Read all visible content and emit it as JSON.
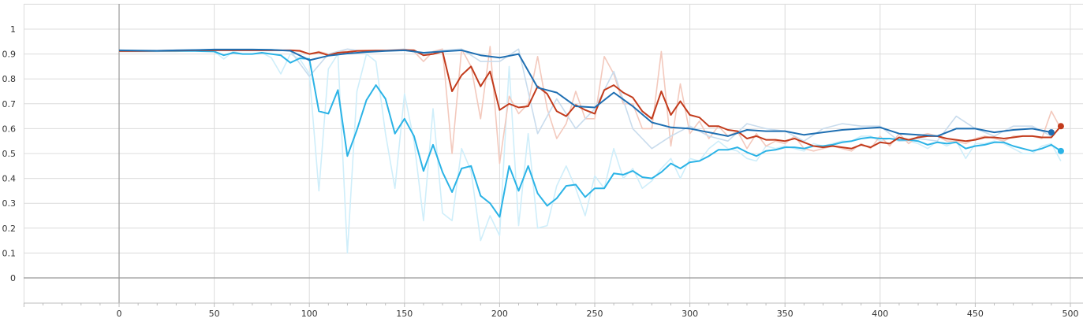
{
  "chart_data": {
    "type": "line",
    "xlim": [
      -50,
      500
    ],
    "ylim": [
      -0.1,
      1.1
    ],
    "x_ticks": [
      0,
      50,
      100,
      150,
      200,
      250,
      300,
      350,
      400,
      450,
      500
    ],
    "y_ticks": [
      0,
      0.1,
      0.2,
      0.3,
      0.4,
      0.5,
      0.6,
      0.7,
      0.8,
      0.9,
      1
    ],
    "grid": true,
    "series": [
      {
        "color": "#2bb3e6",
        "raw_color": "#cfeefa",
        "end_marker": true,
        "x": [
          0,
          10,
          20,
          30,
          40,
          50,
          55,
          60,
          65,
          70,
          75,
          80,
          85,
          90,
          95,
          100,
          105,
          110,
          115,
          120,
          125,
          130,
          135,
          140,
          145,
          150,
          155,
          160,
          165,
          170,
          175,
          180,
          185,
          190,
          195,
          200,
          205,
          210,
          215,
          220,
          225,
          230,
          235,
          240,
          245,
          250,
          255,
          260,
          265,
          270,
          275,
          280,
          285,
          290,
          295,
          300,
          305,
          310,
          315,
          320,
          325,
          330,
          335,
          340,
          345,
          350,
          355,
          360,
          365,
          370,
          375,
          380,
          385,
          390,
          395,
          400,
          405,
          410,
          415,
          420,
          425,
          430,
          435,
          440,
          445,
          450,
          455,
          460,
          465,
          470,
          475,
          480,
          485,
          490,
          495
        ],
        "smoothed": [
          0.912,
          0.912,
          0.912,
          0.912,
          0.912,
          0.91,
          0.895,
          0.905,
          0.9,
          0.9,
          0.905,
          0.9,
          0.895,
          0.865,
          0.883,
          0.88,
          0.67,
          0.66,
          0.755,
          0.49,
          0.595,
          0.715,
          0.775,
          0.72,
          0.58,
          0.64,
          0.57,
          0.43,
          0.535,
          0.425,
          0.345,
          0.44,
          0.45,
          0.33,
          0.3,
          0.245,
          0.45,
          0.35,
          0.45,
          0.34,
          0.29,
          0.32,
          0.37,
          0.375,
          0.325,
          0.36,
          0.36,
          0.42,
          0.415,
          0.43,
          0.405,
          0.4,
          0.425,
          0.46,
          0.44,
          0.465,
          0.47,
          0.49,
          0.515,
          0.515,
          0.525,
          0.505,
          0.49,
          0.51,
          0.515,
          0.525,
          0.525,
          0.52,
          0.53,
          0.53,
          0.535,
          0.545,
          0.55,
          0.56,
          0.565,
          0.56,
          0.56,
          0.555,
          0.555,
          0.55,
          0.535,
          0.545,
          0.54,
          0.545,
          0.52,
          0.53,
          0.535,
          0.545,
          0.545,
          0.53,
          0.52,
          0.51,
          0.52,
          0.535,
          0.51
        ],
        "raw": [
          0.91,
          0.91,
          0.91,
          0.91,
          0.915,
          0.91,
          0.88,
          0.91,
          0.9,
          0.9,
          0.905,
          0.885,
          0.82,
          0.9,
          0.88,
          0.82,
          0.35,
          0.84,
          0.9,
          0.1,
          0.75,
          0.9,
          0.87,
          0.58,
          0.36,
          0.74,
          0.55,
          0.23,
          0.68,
          0.26,
          0.23,
          0.52,
          0.43,
          0.15,
          0.25,
          0.17,
          0.85,
          0.21,
          0.58,
          0.2,
          0.21,
          0.37,
          0.45,
          0.36,
          0.25,
          0.41,
          0.36,
          0.52,
          0.4,
          0.44,
          0.36,
          0.39,
          0.44,
          0.48,
          0.4,
          0.48,
          0.47,
          0.52,
          0.55,
          0.52,
          0.51,
          0.48,
          0.47,
          0.53,
          0.52,
          0.53,
          0.52,
          0.51,
          0.54,
          0.53,
          0.54,
          0.55,
          0.55,
          0.57,
          0.57,
          0.55,
          0.56,
          0.55,
          0.55,
          0.54,
          0.52,
          0.55,
          0.53,
          0.55,
          0.48,
          0.54,
          0.54,
          0.55,
          0.54,
          0.52,
          0.5,
          0.5,
          0.53,
          0.54,
          0.47
        ]
      },
      {
        "color": "#c23b1c",
        "raw_color": "#f3c9bd",
        "end_marker": true,
        "x": [
          0,
          10,
          20,
          30,
          40,
          50,
          60,
          70,
          80,
          90,
          95,
          100,
          105,
          110,
          115,
          120,
          125,
          130,
          135,
          140,
          145,
          150,
          155,
          160,
          165,
          170,
          175,
          180,
          185,
          190,
          195,
          200,
          205,
          210,
          215,
          220,
          225,
          230,
          235,
          240,
          245,
          250,
          255,
          260,
          265,
          270,
          275,
          280,
          285,
          290,
          295,
          300,
          305,
          310,
          315,
          320,
          325,
          330,
          335,
          340,
          345,
          350,
          355,
          360,
          365,
          370,
          375,
          380,
          385,
          390,
          395,
          400,
          405,
          410,
          415,
          420,
          425,
          430,
          435,
          440,
          445,
          450,
          455,
          460,
          465,
          470,
          475,
          480,
          485,
          490,
          495
        ],
        "smoothed": [
          0.912,
          0.912,
          0.913,
          0.914,
          0.915,
          0.915,
          0.915,
          0.915,
          0.915,
          0.915,
          0.913,
          0.9,
          0.907,
          0.895,
          0.905,
          0.908,
          0.912,
          0.913,
          0.914,
          0.914,
          0.915,
          0.916,
          0.915,
          0.895,
          0.9,
          0.91,
          0.75,
          0.815,
          0.85,
          0.77,
          0.83,
          0.675,
          0.7,
          0.685,
          0.69,
          0.77,
          0.74,
          0.67,
          0.65,
          0.695,
          0.675,
          0.66,
          0.755,
          0.775,
          0.745,
          0.725,
          0.67,
          0.64,
          0.75,
          0.655,
          0.71,
          0.655,
          0.645,
          0.61,
          0.61,
          0.595,
          0.59,
          0.56,
          0.57,
          0.555,
          0.555,
          0.55,
          0.56,
          0.545,
          0.53,
          0.525,
          0.53,
          0.525,
          0.52,
          0.535,
          0.525,
          0.545,
          0.54,
          0.565,
          0.555,
          0.565,
          0.57,
          0.57,
          0.56,
          0.555,
          0.55,
          0.555,
          0.565,
          0.565,
          0.56,
          0.565,
          0.57,
          0.57,
          0.565,
          0.565,
          0.61
        ],
        "raw": [
          0.91,
          0.91,
          0.91,
          0.915,
          0.915,
          0.915,
          0.915,
          0.915,
          0.915,
          0.915,
          0.91,
          0.9,
          0.91,
          0.9,
          0.91,
          0.91,
          0.915,
          0.915,
          0.915,
          0.915,
          0.915,
          0.915,
          0.91,
          0.87,
          0.91,
          0.92,
          0.5,
          0.92,
          0.85,
          0.64,
          0.93,
          0.46,
          0.73,
          0.66,
          0.7,
          0.89,
          0.68,
          0.56,
          0.62,
          0.75,
          0.64,
          0.64,
          0.89,
          0.82,
          0.7,
          0.7,
          0.6,
          0.6,
          0.91,
          0.53,
          0.78,
          0.58,
          0.63,
          0.56,
          0.61,
          0.57,
          0.59,
          0.52,
          0.58,
          0.53,
          0.55,
          0.54,
          0.57,
          0.52,
          0.51,
          0.52,
          0.53,
          0.52,
          0.51,
          0.54,
          0.52,
          0.57,
          0.53,
          0.58,
          0.54,
          0.57,
          0.58,
          0.57,
          0.55,
          0.55,
          0.54,
          0.56,
          0.57,
          0.56,
          0.55,
          0.57,
          0.57,
          0.57,
          0.56,
          0.67,
          0.6
        ]
      },
      {
        "color": "#1f6fb2",
        "raw_color": "#c9dced",
        "end_marker": true,
        "x": [
          0,
          10,
          20,
          30,
          40,
          50,
          60,
          70,
          80,
          90,
          100,
          110,
          120,
          130,
          140,
          150,
          160,
          170,
          180,
          190,
          200,
          210,
          220,
          230,
          240,
          250,
          260,
          270,
          280,
          290,
          300,
          310,
          320,
          330,
          340,
          350,
          360,
          370,
          380,
          390,
          400,
          410,
          420,
          430,
          440,
          450,
          460,
          470,
          480,
          490
        ],
        "smoothed": [
          0.915,
          0.914,
          0.913,
          0.915,
          0.916,
          0.918,
          0.918,
          0.918,
          0.917,
          0.913,
          0.875,
          0.893,
          0.902,
          0.908,
          0.912,
          0.915,
          0.905,
          0.91,
          0.915,
          0.895,
          0.885,
          0.9,
          0.765,
          0.745,
          0.69,
          0.685,
          0.745,
          0.69,
          0.625,
          0.605,
          0.6,
          0.585,
          0.57,
          0.595,
          0.59,
          0.59,
          0.575,
          0.585,
          0.595,
          0.6,
          0.605,
          0.58,
          0.575,
          0.57,
          0.6,
          0.6,
          0.585,
          0.595,
          0.6,
          0.585
        ],
        "raw": [
          0.915,
          0.914,
          0.913,
          0.915,
          0.916,
          0.918,
          0.918,
          0.918,
          0.917,
          0.913,
          0.81,
          0.9,
          0.92,
          0.91,
          0.915,
          0.92,
          0.9,
          0.915,
          0.92,
          0.87,
          0.87,
          0.92,
          0.58,
          0.72,
          0.6,
          0.68,
          0.83,
          0.6,
          0.52,
          0.57,
          0.61,
          0.57,
          0.55,
          0.62,
          0.6,
          0.59,
          0.55,
          0.6,
          0.62,
          0.61,
          0.61,
          0.55,
          0.56,
          0.55,
          0.65,
          0.6,
          0.57,
          0.61,
          0.61,
          0.57
        ]
      }
    ]
  }
}
